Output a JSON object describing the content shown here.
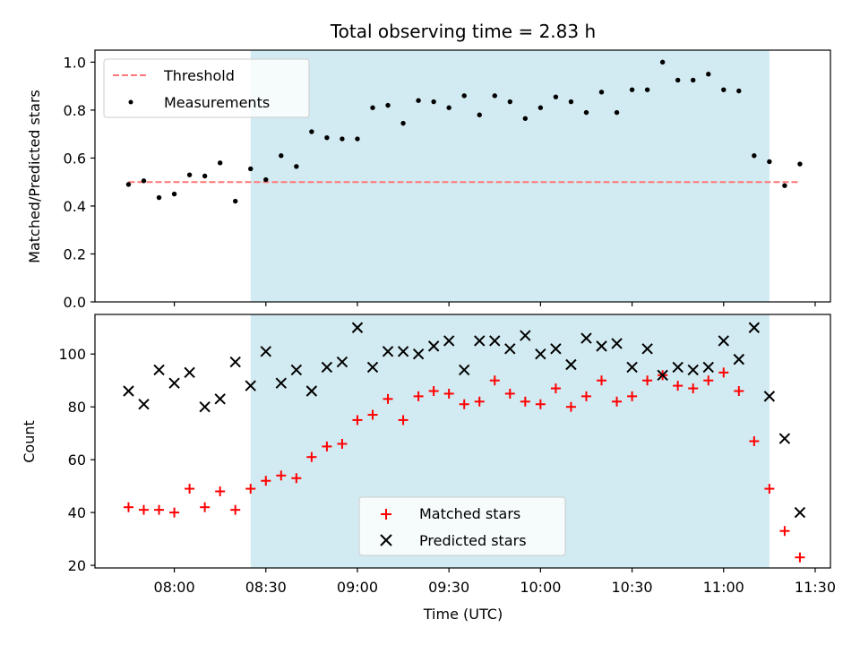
{
  "chart_data": [
    {
      "type": "scatter",
      "title": "Total observing time = 2.83 h",
      "xlabel": "",
      "ylabel": "Matched/Predicted stars",
      "ylim": [
        0,
        1.05
      ],
      "yticks": [
        0.0,
        0.2,
        0.4,
        0.6,
        0.8,
        1.0
      ],
      "ytick_labels": [
        "0.0",
        "0.2",
        "0.4",
        "0.6",
        "0.8",
        "1.0"
      ],
      "grid": false,
      "legend_position": "top-left",
      "shaded_span": [
        "08:25",
        "11:15"
      ],
      "shade_color": "#add8e6",
      "threshold": {
        "name": "Threshold",
        "value": 0.5,
        "x_range": [
          "07:45",
          "11:25"
        ],
        "color": "#ff7777"
      },
      "series": [
        {
          "name": "Measurements",
          "marker": "dot",
          "color": "#000000",
          "x": [
            "07:45",
            "07:50",
            "07:55",
            "08:00",
            "08:05",
            "08:10",
            "08:15",
            "08:20",
            "08:25",
            "08:30",
            "08:35",
            "08:40",
            "08:45",
            "08:50",
            "08:55",
            "09:00",
            "09:05",
            "09:10",
            "09:15",
            "09:20",
            "09:25",
            "09:30",
            "09:35",
            "09:40",
            "09:45",
            "09:50",
            "09:55",
            "10:00",
            "10:05",
            "10:10",
            "10:15",
            "10:20",
            "10:25",
            "10:30",
            "10:35",
            "10:40",
            "10:45",
            "10:50",
            "10:55",
            "11:00",
            "11:05",
            "11:10",
            "11:15",
            "11:20",
            "11:25"
          ],
          "y": [
            0.49,
            0.505,
            0.435,
            0.45,
            0.53,
            0.525,
            0.58,
            0.42,
            0.555,
            0.51,
            0.61,
            0.565,
            0.71,
            0.685,
            0.68,
            0.68,
            0.81,
            0.82,
            0.745,
            0.84,
            0.835,
            0.81,
            0.86,
            0.78,
            0.86,
            0.835,
            0.765,
            0.81,
            0.855,
            0.835,
            0.79,
            0.875,
            0.79,
            0.885,
            0.885,
            1.0,
            0.925,
            0.925,
            0.95,
            0.885,
            0.88,
            0.61,
            0.585,
            0.485,
            0.575
          ]
        }
      ]
    },
    {
      "type": "scatter",
      "title": "",
      "xlabel": "Time (UTC)",
      "ylabel": "Count",
      "ylim": [
        19,
        115
      ],
      "yticks": [
        20,
        40,
        60,
        80,
        100
      ],
      "ytick_labels": [
        "20",
        "40",
        "60",
        "80",
        "100"
      ],
      "xticks": [
        "08:00",
        "08:30",
        "09:00",
        "09:30",
        "10:00",
        "10:30",
        "11:00",
        "11:30"
      ],
      "xlim": [
        "07:34",
        "11:35"
      ],
      "grid": false,
      "legend_position": "bottom-center",
      "shaded_span": [
        "08:25",
        "11:15"
      ],
      "shade_color": "#add8e6",
      "series": [
        {
          "name": "Matched stars",
          "marker": "plus",
          "color": "#ff0000",
          "x": [
            "07:45",
            "07:50",
            "07:55",
            "08:00",
            "08:05",
            "08:10",
            "08:15",
            "08:20",
            "08:25",
            "08:30",
            "08:35",
            "08:40",
            "08:45",
            "08:50",
            "08:55",
            "09:00",
            "09:05",
            "09:10",
            "09:15",
            "09:20",
            "09:25",
            "09:30",
            "09:35",
            "09:40",
            "09:45",
            "09:50",
            "09:55",
            "10:00",
            "10:05",
            "10:10",
            "10:15",
            "10:20",
            "10:25",
            "10:30",
            "10:35",
            "10:40",
            "10:45",
            "10:50",
            "10:55",
            "11:00",
            "11:05",
            "11:10",
            "11:15",
            "11:20",
            "11:25"
          ],
          "y": [
            42,
            41,
            41,
            40,
            49,
            42,
            48,
            41,
            49,
            52,
            54,
            53,
            61,
            65,
            66,
            75,
            77,
            83,
            75,
            84,
            86,
            85,
            81,
            82,
            90,
            85,
            82,
            81,
            87,
            80,
            84,
            90,
            82,
            84,
            90,
            92,
            88,
            87,
            90,
            93,
            86,
            67,
            49,
            33,
            23
          ]
        },
        {
          "name": "Predicted stars",
          "marker": "x",
          "color": "#000000",
          "x": [
            "07:45",
            "07:50",
            "07:55",
            "08:00",
            "08:05",
            "08:10",
            "08:15",
            "08:20",
            "08:25",
            "08:30",
            "08:35",
            "08:40",
            "08:45",
            "08:50",
            "08:55",
            "09:00",
            "09:05",
            "09:10",
            "09:15",
            "09:20",
            "09:25",
            "09:30",
            "09:35",
            "09:40",
            "09:45",
            "09:50",
            "09:55",
            "10:00",
            "10:05",
            "10:10",
            "10:15",
            "10:20",
            "10:25",
            "10:30",
            "10:35",
            "10:40",
            "10:45",
            "10:50",
            "10:55",
            "11:00",
            "11:05",
            "11:10",
            "11:15",
            "11:20",
            "11:25"
          ],
          "y": [
            86,
            81,
            94,
            89,
            93,
            80,
            83,
            97,
            88,
            101,
            89,
            94,
            86,
            95,
            97,
            110,
            95,
            101,
            101,
            100,
            103,
            105,
            94,
            105,
            105,
            102,
            107,
            100,
            102,
            96,
            106,
            103,
            104,
            95,
            102,
            92,
            95,
            94,
            95,
            105,
            98,
            110,
            84,
            68,
            40
          ]
        }
      ]
    }
  ]
}
